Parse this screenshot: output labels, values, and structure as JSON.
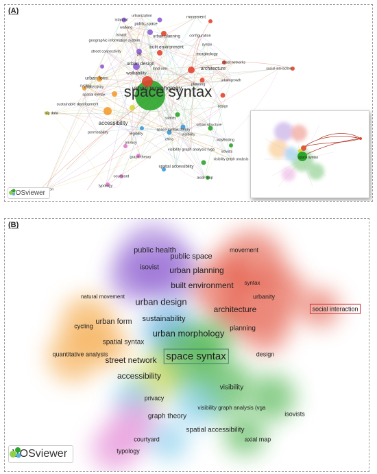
{
  "panel_a": {
    "label": "(A)",
    "watermark": "VOSviewer",
    "labels": [
      {
        "text": "space syntax",
        "color": "#2e2e2e"
      },
      {
        "text": "urbanization",
        "color": "#333"
      },
      {
        "text": "movement",
        "color": "#333"
      },
      {
        "text": "istanbul",
        "color": "#333"
      },
      {
        "text": "public space",
        "color": "#333"
      },
      {
        "text": "configuration",
        "color": "#333"
      },
      {
        "text": "walking",
        "color": "#333"
      },
      {
        "text": "isovist",
        "color": "#333"
      },
      {
        "text": "urban planning",
        "color": "#333"
      },
      {
        "text": "geographic information system",
        "color": "#333"
      },
      {
        "text": "syntax",
        "color": "#333"
      },
      {
        "text": "built environment",
        "color": "#333"
      },
      {
        "text": "street connectivity",
        "color": "#333"
      },
      {
        "text": "gis",
        "color": "#333"
      },
      {
        "text": "morphology",
        "color": "#333"
      },
      {
        "text": "street networks",
        "color": "#333"
      },
      {
        "text": "urban design",
        "color": "#333"
      },
      {
        "text": "land use",
        "color": "#333"
      },
      {
        "text": "architecture",
        "color": "#333"
      },
      {
        "text": "social interaction",
        "color": "#333"
      },
      {
        "text": "walkability",
        "color": "#333"
      },
      {
        "text": "urban form",
        "color": "#333"
      },
      {
        "text": "urban growth",
        "color": "#333"
      },
      {
        "text": "cycling",
        "color": "#333"
      },
      {
        "text": "planning",
        "color": "#333"
      },
      {
        "text": "connectivity",
        "color": "#333"
      },
      {
        "text": "urban morphology",
        "color": "#333"
      },
      {
        "text": "spatial syntax",
        "color": "#333"
      },
      {
        "text": "sustainable development",
        "color": "#333"
      },
      {
        "text": "design",
        "color": "#333"
      },
      {
        "text": "big data",
        "color": "#333"
      },
      {
        "text": "accessibility",
        "color": "#333"
      },
      {
        "text": "suanes",
        "color": "#333"
      },
      {
        "text": "urban structure",
        "color": "#333"
      },
      {
        "text": "permeability",
        "color": "#333"
      },
      {
        "text": "legibility",
        "color": "#333"
      },
      {
        "text": "space syntax theory",
        "color": "#333"
      },
      {
        "text": "visibility",
        "color": "#333"
      },
      {
        "text": "china",
        "color": "#333"
      },
      {
        "text": "wayfinding",
        "color": "#333"
      },
      {
        "text": "privacy",
        "color": "#333"
      },
      {
        "text": "visibility graph analysis (vga",
        "color": "#333"
      },
      {
        "text": "isovists",
        "color": "#333"
      },
      {
        "text": "graph theory",
        "color": "#333"
      },
      {
        "text": "visibility graph analysis",
        "color": "#333"
      },
      {
        "text": "spatial accessibility",
        "color": "#333"
      },
      {
        "text": "courtyard",
        "color": "#333"
      },
      {
        "text": "axial map",
        "color": "#333"
      },
      {
        "text": "typology",
        "color": "#333"
      },
      {
        "text": "erception",
        "color": "#333"
      }
    ]
  },
  "panel_b": {
    "label": "(B)",
    "watermark": "VOSviewer",
    "highlighted_terms": [
      "space syntax",
      "social interaction"
    ],
    "labels": [
      {
        "text": "public health"
      },
      {
        "text": "movement"
      },
      {
        "text": "public space"
      },
      {
        "text": "isovist"
      },
      {
        "text": "urban planning"
      },
      {
        "text": "syntax"
      },
      {
        "text": "built environment"
      },
      {
        "text": "natural movement"
      },
      {
        "text": "urbanity"
      },
      {
        "text": "urban design"
      },
      {
        "text": "architecture"
      },
      {
        "text": "social interaction"
      },
      {
        "text": "sustainability"
      },
      {
        "text": "urban form"
      },
      {
        "text": "cycling"
      },
      {
        "text": "planning"
      },
      {
        "text": "urban morphology"
      },
      {
        "text": "spatial syntax"
      },
      {
        "text": "quantitative analysis"
      },
      {
        "text": "space syntax"
      },
      {
        "text": "design"
      },
      {
        "text": "street network"
      },
      {
        "text": "accessibility"
      },
      {
        "text": "visibility"
      },
      {
        "text": "privacy"
      },
      {
        "text": "visibility graph analysis (vga"
      },
      {
        "text": "isovists"
      },
      {
        "text": "graph theory"
      },
      {
        "text": "spatial accessibility"
      },
      {
        "text": "courtyard"
      },
      {
        "text": "axial map"
      },
      {
        "text": "typology"
      }
    ]
  },
  "colors": {
    "purple": "#8e5fd0",
    "red": "#e0452f",
    "green": "#2aa52a",
    "orange": "#f39c2f",
    "yellow": "#d8d63a",
    "blue": "#3a9ad8",
    "pink": "#e07ad0",
    "lightblue": "#6cc4e8",
    "highlight_box": "#c9303a",
    "focus_box": "#3e7f66"
  }
}
